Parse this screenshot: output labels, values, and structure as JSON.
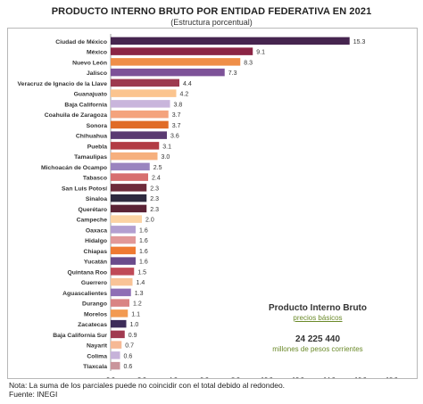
{
  "header": {
    "title": "PRODUCTO INTERNO BRUTO POR ENTIDAD FEDERATIVA EN 2021",
    "subtitle": "(Estructura porcentual)"
  },
  "info_box": {
    "title": "Producto Interno Bruto",
    "subtitle": "precios básicos",
    "value": "24 225 440",
    "unit": "millones de pesos corrientes"
  },
  "footer": {
    "note": "Nota: La suma de los parciales puede no coincidir con el total debido al redondeo.",
    "source": "Fuente: INEGI"
  },
  "chart_data": {
    "type": "bar",
    "orientation": "horizontal",
    "title": "PRODUCTO INTERNO BRUTO POR ENTIDAD FEDERATIVA EN 2021",
    "subtitle": "(Estructura porcentual)",
    "xlim": [
      0,
      18
    ],
    "xticks": [
      "0.0",
      "2.0",
      "4.0",
      "6.0",
      "8.0",
      "10.0",
      "12.0",
      "14.0",
      "16.0",
      "18.0"
    ],
    "grid": false,
    "categories": [
      "Ciudad de México",
      "México",
      "Nuevo León",
      "Jalisco",
      "Veracruz de Ignacio de la Llave",
      "Guanajuato",
      "Baja California",
      "Coahuila de Zaragoza",
      "Sonora",
      "Chihuahua",
      "Puebla",
      "Tamaulipas",
      "Michoacán de Ocampo",
      "Tabasco",
      "San Luis Potosí",
      "Sinaloa",
      "Querétaro",
      "Campeche",
      "Oaxaca",
      "Hidalgo",
      "Chiapas",
      "Yucatán",
      "Quintana Roo",
      "Guerrero",
      "Aguascalientes",
      "Durango",
      "Morelos",
      "Zacatecas",
      "Baja California Sur",
      "Nayarit",
      "Colima",
      "Tlaxcala"
    ],
    "values": [
      15.3,
      9.1,
      8.3,
      7.3,
      4.4,
      4.2,
      3.8,
      3.7,
      3.7,
      3.6,
      3.1,
      3.0,
      2.5,
      2.4,
      2.3,
      2.3,
      2.3,
      2.0,
      1.6,
      1.6,
      1.6,
      1.6,
      1.5,
      1.4,
      1.3,
      1.2,
      1.1,
      1.0,
      0.9,
      0.7,
      0.6,
      0.6
    ],
    "value_labels": [
      "15.3",
      "9.1",
      "8.3",
      "7.3",
      "4.4",
      "4.2",
      "3.8",
      "3.7",
      "3.7",
      "3.6",
      "3.1",
      "3.0",
      "2.5",
      "2.4",
      "2.3",
      "2.3",
      "2.3",
      "2.0",
      "1.6",
      "1.6",
      "1.6",
      "1.6",
      "1.5",
      "1.4",
      "1.3",
      "1.2",
      "1.1",
      "1.0",
      "0.9",
      "0.7",
      "0.6",
      "0.6"
    ],
    "colors": [
      "#46254f",
      "#8b2545",
      "#ef8e48",
      "#7d5298",
      "#9c3a4f",
      "#fbc48e",
      "#c9b5dc",
      "#f4a37d",
      "#e06b27",
      "#5a3a72",
      "#b23c44",
      "#f6b07e",
      "#9a84bf",
      "#d76f6f",
      "#6d2a3a",
      "#2e2a3f",
      "#5b2235",
      "#fcd3a3",
      "#b39fd0",
      "#e19898",
      "#ef7a32",
      "#6a4b8c",
      "#c04a57",
      "#f9c397",
      "#8f6fb5",
      "#d98484",
      "#f29a51",
      "#3d2c59",
      "#a13a50",
      "#f6b995",
      "#c6b2d9",
      "#c9959b"
    ]
  }
}
